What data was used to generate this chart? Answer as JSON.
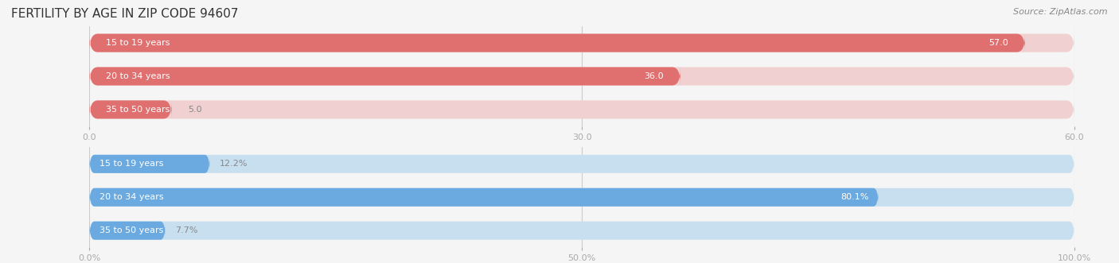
{
  "title": "FERTILITY BY AGE IN ZIP CODE 94607",
  "source": "Source: ZipAtlas.com",
  "top_chart": {
    "categories": [
      "15 to 19 years",
      "20 to 34 years",
      "35 to 50 years"
    ],
    "values": [
      57.0,
      36.0,
      5.0
    ],
    "max_value": 60.0,
    "tick_values": [
      0.0,
      30.0,
      60.0
    ],
    "bar_color_full": "#e07070",
    "bar_color_empty": "#f0d0d0",
    "label_color_inside": "#ffffff",
    "label_color_outside": "#888888"
  },
  "bottom_chart": {
    "categories": [
      "15 to 19 years",
      "20 to 34 years",
      "35 to 50 years"
    ],
    "values": [
      12.2,
      80.1,
      7.7
    ],
    "max_value": 100.0,
    "tick_values": [
      0.0,
      50.0,
      100.0
    ],
    "tick_labels": [
      "0.0%",
      "50.0%",
      "100.0%"
    ],
    "bar_color_full": "#6aaae0",
    "bar_color_empty": "#c8dff0",
    "label_color_inside": "#ffffff",
    "label_color_outside": "#888888"
  },
  "background_color": "#f5f5f5",
  "bar_bg_color": "#e8e8e8",
  "title_fontsize": 11,
  "source_fontsize": 8,
  "label_fontsize": 8,
  "tick_fontsize": 8,
  "cat_label_fontsize": 8,
  "bar_height": 0.55,
  "title_color": "#333333",
  "source_color": "#888888",
  "cat_label_color": "#555555",
  "tick_color": "#aaaaaa"
}
